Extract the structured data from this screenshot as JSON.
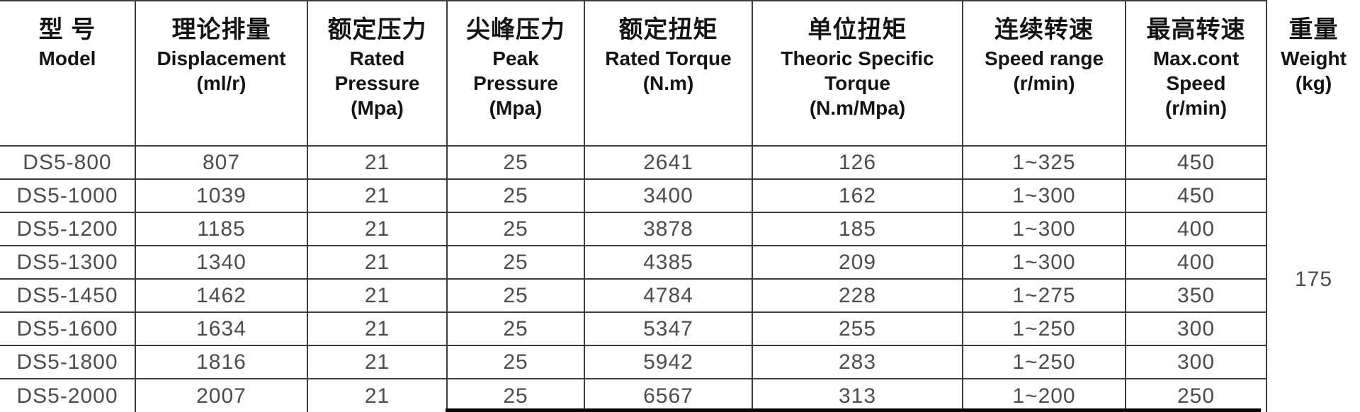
{
  "table": {
    "title": "DS5 series specification table",
    "columns": [
      {
        "key": "model",
        "lines": [
          "型 号",
          "Model"
        ]
      },
      {
        "key": "displacement",
        "lines": [
          "理论排量",
          "Displacement",
          "(ml/r)"
        ]
      },
      {
        "key": "rated_pressure",
        "lines": [
          "额定压力",
          "Rated",
          "Pressure",
          "(Mpa)"
        ]
      },
      {
        "key": "peak_pressure",
        "lines": [
          "尖峰压力",
          "Peak",
          "Pressure",
          "(Mpa)"
        ]
      },
      {
        "key": "rated_torque",
        "lines": [
          "额定扭矩",
          "Rated Torque",
          "(N.m)"
        ]
      },
      {
        "key": "specific_torque",
        "lines": [
          "单位扭矩",
          "Theoric Specific",
          "Torque",
          "(N.m/Mpa)"
        ]
      },
      {
        "key": "speed_range",
        "lines": [
          "连续转速",
          "Speed range",
          "(r/min)"
        ]
      },
      {
        "key": "max_speed",
        "lines": [
          "最高转速",
          "Max.cont",
          "Speed",
          "(r/min)"
        ]
      },
      {
        "key": "weight",
        "lines": [
          "重量",
          "Weight",
          "(kg)"
        ]
      }
    ],
    "rows": [
      {
        "model": "DS5-800",
        "displacement": "807",
        "rated_pressure": "21",
        "peak_pressure": "25",
        "rated_torque": "2641",
        "specific_torque": "126",
        "speed_range": "1~325",
        "max_speed": "450"
      },
      {
        "model": "DS5-1000",
        "displacement": "1039",
        "rated_pressure": "21",
        "peak_pressure": "25",
        "rated_torque": "3400",
        "specific_torque": "162",
        "speed_range": "1~300",
        "max_speed": "450"
      },
      {
        "model": "DS5-1200",
        "displacement": "1185",
        "rated_pressure": "21",
        "peak_pressure": "25",
        "rated_torque": "3878",
        "specific_torque": "185",
        "speed_range": "1~300",
        "max_speed": "400"
      },
      {
        "model": "DS5-1300",
        "displacement": "1340",
        "rated_pressure": "21",
        "peak_pressure": "25",
        "rated_torque": "4385",
        "specific_torque": "209",
        "speed_range": "1~300",
        "max_speed": "400"
      },
      {
        "model": "DS5-1450",
        "displacement": "1462",
        "rated_pressure": "21",
        "peak_pressure": "25",
        "rated_torque": "4784",
        "specific_torque": "228",
        "speed_range": "1~275",
        "max_speed": "350"
      },
      {
        "model": "DS5-1600",
        "displacement": "1634",
        "rated_pressure": "21",
        "peak_pressure": "25",
        "rated_torque": "5347",
        "specific_torque": "255",
        "speed_range": "1~250",
        "max_speed": "300"
      },
      {
        "model": "DS5-1800",
        "displacement": "1816",
        "rated_pressure": "21",
        "peak_pressure": "25",
        "rated_torque": "5942",
        "specific_torque": "283",
        "speed_range": "1~250",
        "max_speed": "300"
      },
      {
        "model": "DS5-2000",
        "displacement": "2007",
        "rated_pressure": "21",
        "peak_pressure": "25",
        "rated_torque": "6567",
        "specific_torque": "313",
        "speed_range": "1~200",
        "max_speed": "250"
      }
    ],
    "merged_weight_value": "175"
  },
  "colors": {
    "border": "#3c3c3c",
    "header_text": "#141414",
    "data_text": "#4c4c4c",
    "bottom_bar": "#000000",
    "background": "#ffffff"
  }
}
